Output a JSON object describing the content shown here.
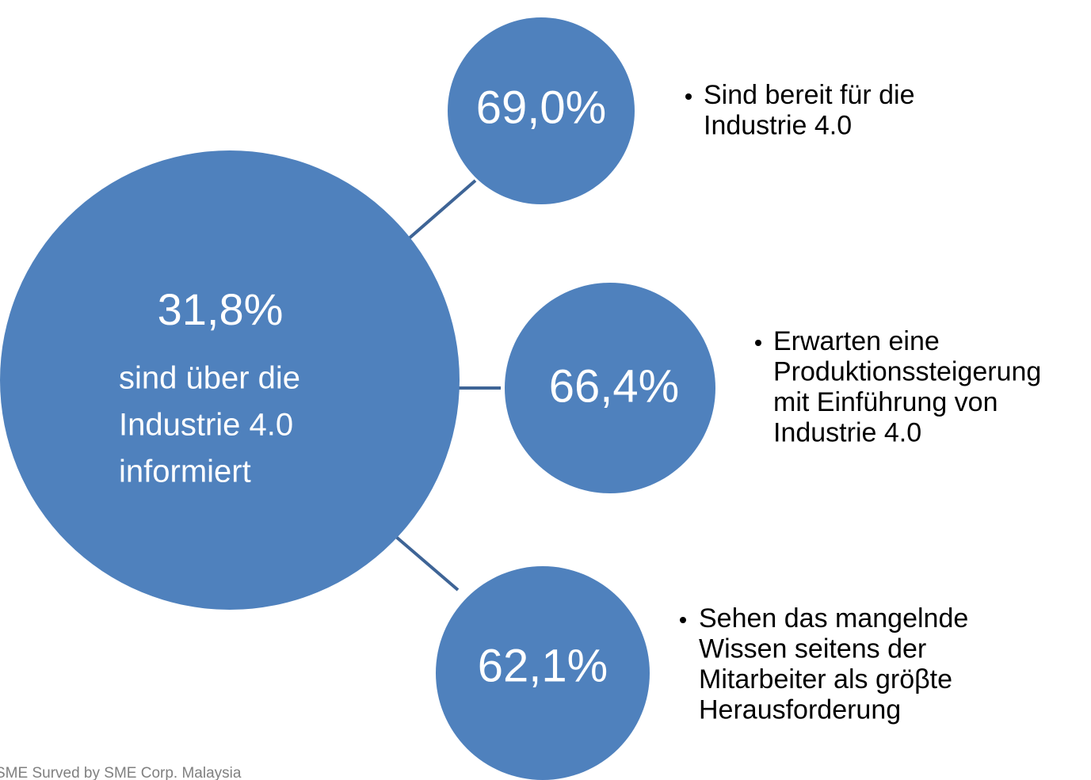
{
  "center": {
    "value": "31,8%",
    "lines": [
      "sind über die",
      "Industrie 4.0",
      "informiert"
    ]
  },
  "nodes": [
    {
      "value": "69,0%",
      "lines": [
        "Sind bereit für die",
        "Industrie 4.0"
      ]
    },
    {
      "value": "66,4%",
      "lines": [
        "Erwarten eine",
        "Produktionssteigerung",
        "mit Einführung von",
        "Industrie 4.0"
      ]
    },
    {
      "value": "62,1%",
      "lines": [
        "Sehen das mangelnde",
        "Wissen seitens der",
        "Mitarbeiter als gröβte",
        "Herausforderung"
      ]
    }
  ],
  "source": "SME Surved by SME Corp. Malaysia"
}
